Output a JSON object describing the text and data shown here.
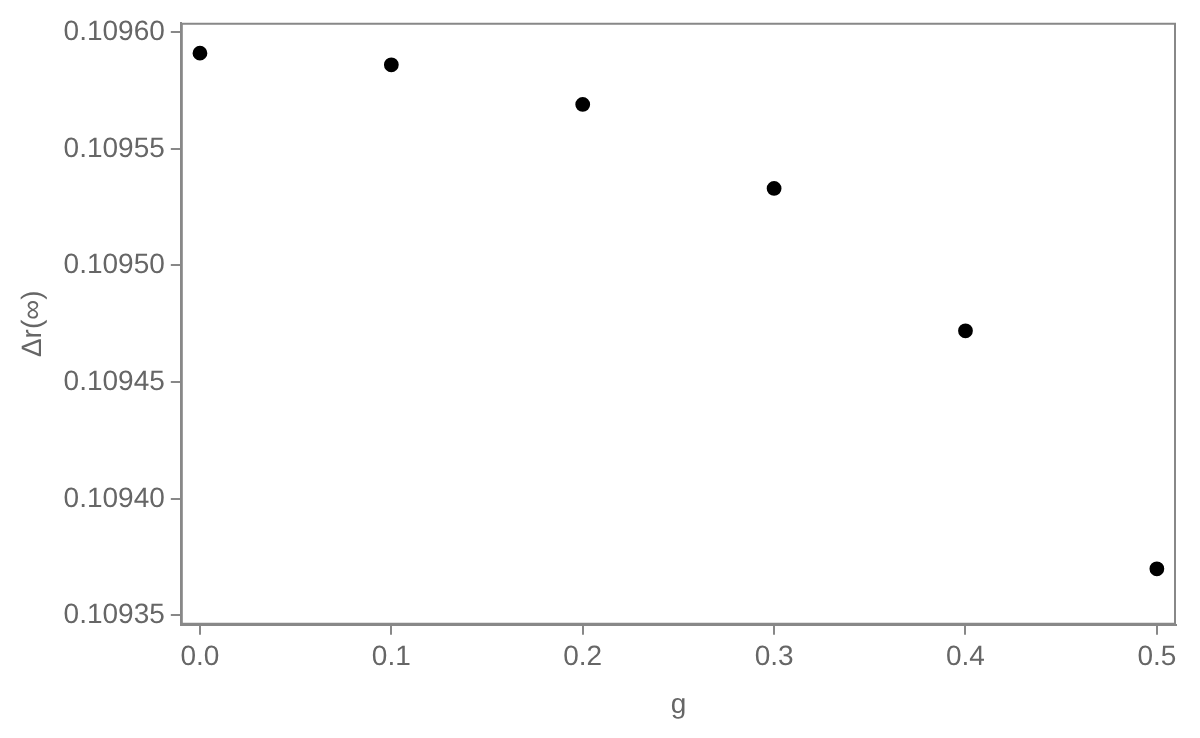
{
  "chart_data": {
    "type": "scatter",
    "xlabel": "g",
    "ylabel": "Δr(∞)",
    "x": [
      0,
      0.1,
      0.2,
      0.3,
      0.4,
      0.5
    ],
    "series": [
      {
        "color": "#000000",
        "values": [
          0.109591,
          0.109586,
          0.109569,
          0.109533,
          0.109472,
          0.10937
        ]
      }
    ],
    "xlim": [
      -0.01,
      0.51
    ],
    "ylim": [
      0.109346,
      0.109604
    ],
    "xticks": [
      {
        "value": 0,
        "label": "0.0"
      },
      {
        "value": 0.1,
        "label": "0.1"
      },
      {
        "value": 0.2,
        "label": "0.2"
      },
      {
        "value": 0.3,
        "label": "0.3"
      },
      {
        "value": 0.4,
        "label": "0.4"
      },
      {
        "value": 0.5,
        "label": "0.5"
      }
    ],
    "yticks": [
      {
        "value": 0.10935,
        "label": "0.10935"
      },
      {
        "value": 0.1094,
        "label": "0.10940"
      },
      {
        "value": 0.10945,
        "label": "0.10945"
      },
      {
        "value": 0.1095,
        "label": "0.10950"
      },
      {
        "value": 0.10955,
        "label": "0.10955"
      },
      {
        "value": 0.1096,
        "label": "0.10960"
      }
    ],
    "grid": false,
    "legend": false,
    "marker": "circle"
  }
}
